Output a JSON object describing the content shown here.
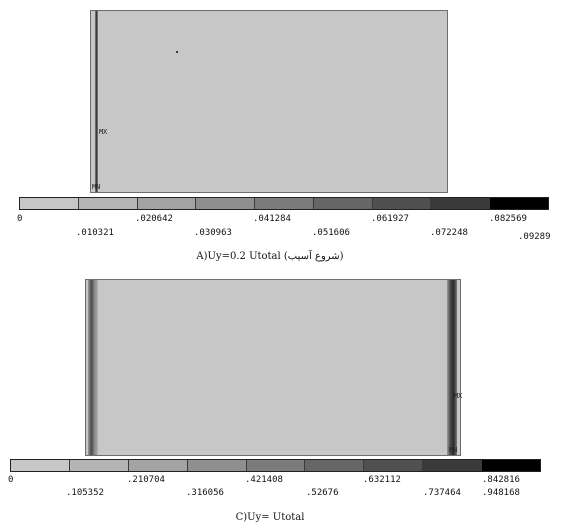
{
  "figure_a": {
    "markers": {
      "max": "MX",
      "min": "MN"
    },
    "legend": {
      "colors": [
        "#c7c7c7",
        "#b5b5b5",
        "#a3a3a3",
        "#8f8f8f",
        "#7b7b7b",
        "#666666",
        "#505050",
        "#3a3a3a",
        "#000000"
      ],
      "ticks_top": [
        "0",
        ".020642",
        ".041284",
        ".061927",
        ".082569"
      ],
      "ticks_bottom": [
        ".010321",
        ".030963",
        ".051606",
        ".072248",
        ".09289"
      ]
    },
    "caption": "A)Uy=0.2 Utotal  (شروع آسیب)"
  },
  "figure_c": {
    "markers": {
      "max": "MX",
      "min": "MN"
    },
    "legend": {
      "colors": [
        "#c7c7c7",
        "#b5b5b5",
        "#a3a3a3",
        "#8f8f8f",
        "#7b7b7b",
        "#666666",
        "#505050",
        "#3a3a3a",
        "#000000"
      ],
      "ticks_top": [
        "0",
        ".210704",
        ".421408",
        ".632112",
        ".842816"
      ],
      "ticks_bottom": [
        ".105352",
        ".316056",
        ".52676",
        ".737464",
        ".948168"
      ]
    },
    "caption": "C)Uy= Utotal"
  }
}
